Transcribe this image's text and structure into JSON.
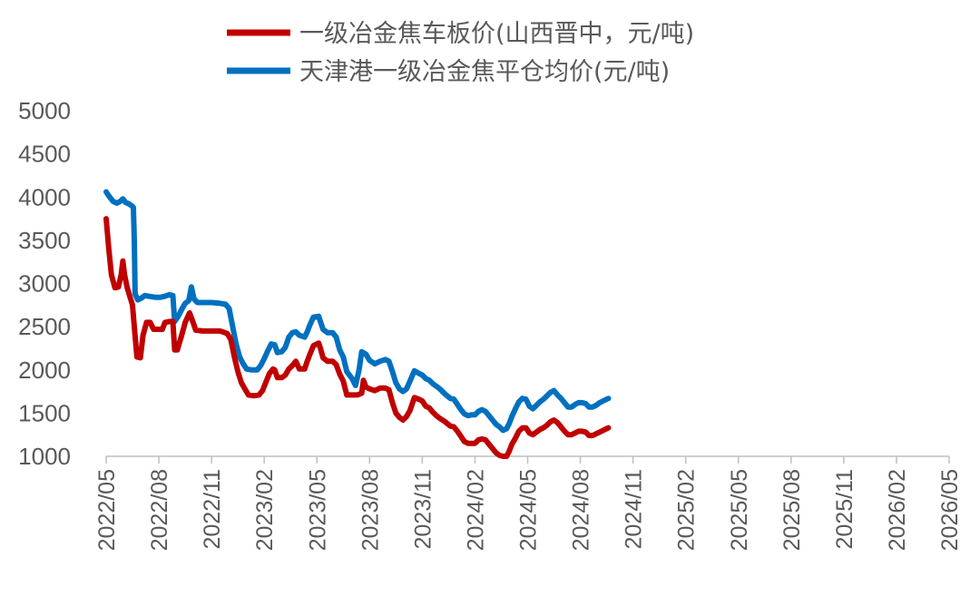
{
  "chart_data": {
    "type": "line",
    "x_ticks": [
      "2022/05",
      "2022/08",
      "2022/11",
      "2023/02",
      "2023/05",
      "2023/08",
      "2023/11",
      "2024/02",
      "2024/05",
      "2024/08",
      "2024/11",
      "2025/02",
      "2025/05",
      "2025/08",
      "2025/11",
      "2026/02",
      "2026/05"
    ],
    "x_start": "2022/05",
    "x_end": "2026/05",
    "ylim": [
      1000,
      5000
    ],
    "y_ticks": [
      1000,
      1500,
      2000,
      2500,
      3000,
      3500,
      4000,
      4500,
      5000
    ],
    "grid": false,
    "legend_position": "top",
    "series": [
      {
        "name": "一级冶金焦车板价(山西晋中，元/吨)",
        "color": "#c00000",
        "points": [
          [
            0,
            3750
          ],
          [
            0.15,
            3400
          ],
          [
            0.3,
            3100
          ],
          [
            0.5,
            2950
          ],
          [
            0.7,
            2960
          ],
          [
            0.85,
            3100
          ],
          [
            0.95,
            3260
          ],
          [
            1.05,
            3100
          ],
          [
            1.2,
            2950
          ],
          [
            1.35,
            2850
          ],
          [
            1.5,
            2750
          ],
          [
            1.6,
            2500
          ],
          [
            1.75,
            2150
          ],
          [
            1.95,
            2140
          ],
          [
            2.1,
            2400
          ],
          [
            2.3,
            2550
          ],
          [
            2.5,
            2550
          ],
          [
            2.7,
            2470
          ],
          [
            3.0,
            2470
          ],
          [
            3.2,
            2470
          ],
          [
            3.35,
            2550
          ],
          [
            3.6,
            2560
          ],
          [
            3.8,
            2560
          ],
          [
            3.9,
            2230
          ],
          [
            4.05,
            2230
          ],
          [
            4.3,
            2400
          ],
          [
            4.5,
            2550
          ],
          [
            4.75,
            2660
          ],
          [
            4.95,
            2550
          ],
          [
            5.1,
            2460
          ],
          [
            5.5,
            2450
          ],
          [
            6.0,
            2450
          ],
          [
            6.5,
            2450
          ],
          [
            6.9,
            2420
          ],
          [
            7.1,
            2350
          ],
          [
            7.3,
            2150
          ],
          [
            7.5,
            1980
          ],
          [
            7.7,
            1850
          ],
          [
            7.9,
            1780
          ],
          [
            8.1,
            1710
          ],
          [
            8.4,
            1700
          ],
          [
            8.7,
            1710
          ],
          [
            8.9,
            1760
          ],
          [
            9.1,
            1860
          ],
          [
            9.3,
            1960
          ],
          [
            9.5,
            2010
          ],
          [
            9.6,
            2000
          ],
          [
            9.75,
            1910
          ],
          [
            10.0,
            1910
          ],
          [
            10.2,
            1940
          ],
          [
            10.4,
            2010
          ],
          [
            10.6,
            2050
          ],
          [
            10.8,
            2100
          ],
          [
            11.0,
            2010
          ],
          [
            11.3,
            2010
          ],
          [
            11.45,
            2100
          ],
          [
            11.6,
            2180
          ],
          [
            11.8,
            2280
          ],
          [
            12.1,
            2310
          ],
          [
            12.2,
            2250
          ],
          [
            12.35,
            2140
          ],
          [
            12.6,
            2100
          ],
          [
            12.9,
            2100
          ],
          [
            13.1,
            2060
          ],
          [
            13.3,
            1950
          ],
          [
            13.5,
            1870
          ],
          [
            13.7,
            1710
          ],
          [
            14.0,
            1710
          ],
          [
            14.3,
            1710
          ],
          [
            14.55,
            1730
          ],
          [
            14.65,
            1880
          ],
          [
            14.8,
            1800
          ],
          [
            15.0,
            1780
          ],
          [
            15.3,
            1760
          ],
          [
            15.6,
            1790
          ],
          [
            15.9,
            1790
          ],
          [
            16.1,
            1770
          ],
          [
            16.3,
            1620
          ],
          [
            16.5,
            1500
          ],
          [
            16.7,
            1450
          ],
          [
            16.9,
            1420
          ],
          [
            17.1,
            1460
          ],
          [
            17.3,
            1530
          ],
          [
            17.55,
            1680
          ],
          [
            17.8,
            1660
          ],
          [
            18.0,
            1640
          ],
          [
            18.2,
            1580
          ],
          [
            18.4,
            1560
          ],
          [
            18.6,
            1510
          ],
          [
            18.8,
            1470
          ],
          [
            19.0,
            1440
          ],
          [
            19.3,
            1400
          ],
          [
            19.6,
            1350
          ],
          [
            19.8,
            1340
          ],
          [
            20.0,
            1290
          ],
          [
            20.2,
            1230
          ],
          [
            20.4,
            1170
          ],
          [
            20.6,
            1150
          ],
          [
            20.8,
            1150
          ],
          [
            21.0,
            1150
          ],
          [
            21.2,
            1190
          ],
          [
            21.4,
            1200
          ],
          [
            21.6,
            1190
          ],
          [
            21.8,
            1140
          ],
          [
            22.0,
            1090
          ],
          [
            22.2,
            1040
          ],
          [
            22.4,
            1010
          ],
          [
            22.6,
            1000
          ],
          [
            22.8,
            1000
          ],
          [
            22.95,
            1060
          ],
          [
            23.1,
            1140
          ],
          [
            23.3,
            1210
          ],
          [
            23.5,
            1290
          ],
          [
            23.7,
            1330
          ],
          [
            23.9,
            1330
          ],
          [
            24.1,
            1270
          ],
          [
            24.3,
            1250
          ],
          [
            24.5,
            1280
          ],
          [
            24.7,
            1310
          ],
          [
            24.9,
            1330
          ],
          [
            25.1,
            1360
          ],
          [
            25.3,
            1400
          ],
          [
            25.5,
            1420
          ],
          [
            25.7,
            1390
          ],
          [
            25.9,
            1340
          ],
          [
            26.1,
            1290
          ],
          [
            26.3,
            1250
          ],
          [
            26.5,
            1250
          ],
          [
            26.7,
            1270
          ],
          [
            26.9,
            1290
          ],
          [
            27.1,
            1290
          ],
          [
            27.3,
            1280
          ],
          [
            27.5,
            1240
          ],
          [
            27.7,
            1240
          ],
          [
            27.9,
            1260
          ],
          [
            28.1,
            1280
          ],
          [
            28.3,
            1300
          ],
          [
            28.5,
            1320
          ],
          [
            28.6,
            1330
          ]
        ]
      },
      {
        "name": "天津港一级冶金焦平仓均价(元/吨)",
        "color": "#0070c0",
        "points": [
          [
            0,
            4060
          ],
          [
            0.2,
            4000
          ],
          [
            0.4,
            3950
          ],
          [
            0.6,
            3930
          ],
          [
            0.8,
            3950
          ],
          [
            0.95,
            3980
          ],
          [
            1.1,
            3940
          ],
          [
            1.3,
            3920
          ],
          [
            1.45,
            3900
          ],
          [
            1.55,
            3880
          ],
          [
            1.6,
            3500
          ],
          [
            1.65,
            2880
          ],
          [
            1.8,
            2810
          ],
          [
            2.0,
            2830
          ],
          [
            2.2,
            2860
          ],
          [
            2.5,
            2850
          ],
          [
            2.8,
            2840
          ],
          [
            3.1,
            2840
          ],
          [
            3.3,
            2850
          ],
          [
            3.6,
            2870
          ],
          [
            3.8,
            2860
          ],
          [
            3.9,
            2560
          ],
          [
            4.1,
            2620
          ],
          [
            4.3,
            2700
          ],
          [
            4.5,
            2770
          ],
          [
            4.7,
            2800
          ],
          [
            4.85,
            2960
          ],
          [
            5.0,
            2820
          ],
          [
            5.2,
            2780
          ],
          [
            5.6,
            2780
          ],
          [
            6.0,
            2780
          ],
          [
            6.5,
            2770
          ],
          [
            6.8,
            2760
          ],
          [
            7.0,
            2710
          ],
          [
            7.2,
            2500
          ],
          [
            7.4,
            2300
          ],
          [
            7.6,
            2150
          ],
          [
            7.8,
            2070
          ],
          [
            8.0,
            2010
          ],
          [
            8.3,
            2000
          ],
          [
            8.6,
            2000
          ],
          [
            8.8,
            2050
          ],
          [
            9.0,
            2130
          ],
          [
            9.2,
            2220
          ],
          [
            9.4,
            2300
          ],
          [
            9.6,
            2290
          ],
          [
            9.75,
            2200
          ],
          [
            10.0,
            2210
          ],
          [
            10.2,
            2260
          ],
          [
            10.4,
            2380
          ],
          [
            10.6,
            2430
          ],
          [
            10.8,
            2440
          ],
          [
            11.0,
            2400
          ],
          [
            11.3,
            2380
          ],
          [
            11.45,
            2440
          ],
          [
            11.6,
            2520
          ],
          [
            11.8,
            2610
          ],
          [
            12.1,
            2620
          ],
          [
            12.2,
            2560
          ],
          [
            12.35,
            2470
          ],
          [
            12.6,
            2430
          ],
          [
            12.9,
            2430
          ],
          [
            13.1,
            2380
          ],
          [
            13.3,
            2230
          ],
          [
            13.5,
            2150
          ],
          [
            13.7,
            1980
          ],
          [
            14.0,
            1900
          ],
          [
            14.2,
            1820
          ],
          [
            14.4,
            2000
          ],
          [
            14.55,
            2210
          ],
          [
            14.8,
            2180
          ],
          [
            15.0,
            2110
          ],
          [
            15.3,
            2070
          ],
          [
            15.6,
            2100
          ],
          [
            15.9,
            2120
          ],
          [
            16.1,
            2100
          ],
          [
            16.3,
            1980
          ],
          [
            16.5,
            1850
          ],
          [
            16.7,
            1780
          ],
          [
            16.9,
            1750
          ],
          [
            17.1,
            1780
          ],
          [
            17.3,
            1870
          ],
          [
            17.55,
            1990
          ],
          [
            17.8,
            1960
          ],
          [
            18.0,
            1940
          ],
          [
            18.2,
            1900
          ],
          [
            18.4,
            1880
          ],
          [
            18.6,
            1840
          ],
          [
            18.8,
            1810
          ],
          [
            19.0,
            1780
          ],
          [
            19.3,
            1720
          ],
          [
            19.6,
            1670
          ],
          [
            19.8,
            1660
          ],
          [
            20.0,
            1600
          ],
          [
            20.2,
            1540
          ],
          [
            20.4,
            1490
          ],
          [
            20.6,
            1470
          ],
          [
            20.8,
            1480
          ],
          [
            21.0,
            1480
          ],
          [
            21.2,
            1520
          ],
          [
            21.4,
            1540
          ],
          [
            21.6,
            1520
          ],
          [
            21.8,
            1470
          ],
          [
            22.0,
            1420
          ],
          [
            22.2,
            1370
          ],
          [
            22.4,
            1340
          ],
          [
            22.6,
            1300
          ],
          [
            22.8,
            1320
          ],
          [
            22.95,
            1380
          ],
          [
            23.1,
            1460
          ],
          [
            23.3,
            1550
          ],
          [
            23.5,
            1630
          ],
          [
            23.7,
            1670
          ],
          [
            23.9,
            1660
          ],
          [
            24.1,
            1580
          ],
          [
            24.3,
            1550
          ],
          [
            24.5,
            1590
          ],
          [
            24.7,
            1630
          ],
          [
            24.9,
            1660
          ],
          [
            25.1,
            1700
          ],
          [
            25.3,
            1740
          ],
          [
            25.5,
            1760
          ],
          [
            25.7,
            1710
          ],
          [
            25.9,
            1670
          ],
          [
            26.1,
            1620
          ],
          [
            26.3,
            1570
          ],
          [
            26.5,
            1570
          ],
          [
            26.7,
            1600
          ],
          [
            26.9,
            1620
          ],
          [
            27.1,
            1620
          ],
          [
            27.3,
            1610
          ],
          [
            27.5,
            1570
          ],
          [
            27.7,
            1570
          ],
          [
            27.9,
            1590
          ],
          [
            28.1,
            1620
          ],
          [
            28.3,
            1640
          ],
          [
            28.5,
            1660
          ],
          [
            28.6,
            1670
          ]
        ]
      }
    ]
  }
}
